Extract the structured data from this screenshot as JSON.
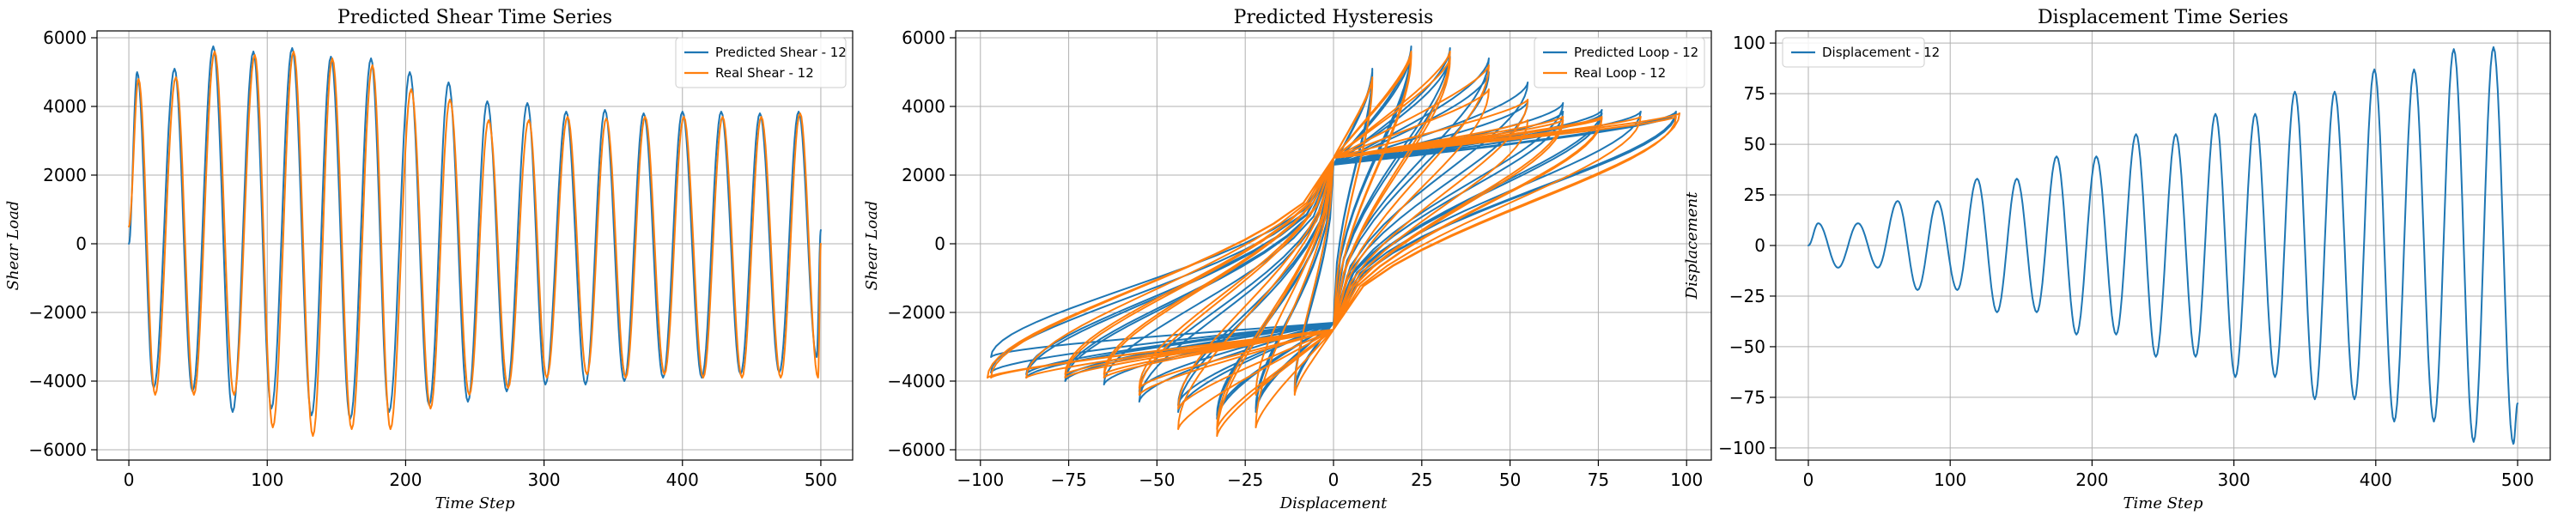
{
  "colors": {
    "blue": "#1f77b4",
    "orange": "#ff7f0e"
  },
  "chart_data": [
    {
      "id": "shear",
      "type": "line",
      "title": "Predicted Shear Time Series",
      "xlabel": "Time Step",
      "ylabel": "Shear Load",
      "xlim": [
        -23,
        523
      ],
      "ylim": [
        -6300,
        6200
      ],
      "xticks": [
        0,
        100,
        200,
        300,
        400,
        500
      ],
      "yticks": [
        -6000,
        -4000,
        -2000,
        0,
        2000,
        4000,
        6000
      ],
      "grid": true,
      "legend_position": "top-right",
      "series": [
        {
          "name": "Predicted Shear - 12",
          "color": "#1f77b4",
          "peaks": [
            {
              "x": 0,
              "y": 0
            },
            {
              "x": 6,
              "y": 5000
            },
            {
              "x": 18,
              "y": -4200
            },
            {
              "x": 33,
              "y": 5100
            },
            {
              "x": 46,
              "y": -4300
            },
            {
              "x": 61,
              "y": 5750
            },
            {
              "x": 75,
              "y": -4900
            },
            {
              "x": 90,
              "y": 5600
            },
            {
              "x": 103,
              "y": -4800
            },
            {
              "x": 118,
              "y": 5700
            },
            {
              "x": 132,
              "y": -5000
            },
            {
              "x": 146,
              "y": 5450
            },
            {
              "x": 160,
              "y": -5100
            },
            {
              "x": 175,
              "y": 5400
            },
            {
              "x": 188,
              "y": -4900
            },
            {
              "x": 203,
              "y": 5000
            },
            {
              "x": 217,
              "y": -4700
            },
            {
              "x": 231,
              "y": 4700
            },
            {
              "x": 245,
              "y": -4600
            },
            {
              "x": 259,
              "y": 4150
            },
            {
              "x": 273,
              "y": -4300
            },
            {
              "x": 288,
              "y": 4100
            },
            {
              "x": 301,
              "y": -4100
            },
            {
              "x": 316,
              "y": 3850
            },
            {
              "x": 330,
              "y": -4100
            },
            {
              "x": 344,
              "y": 3900
            },
            {
              "x": 358,
              "y": -4000
            },
            {
              "x": 372,
              "y": 3800
            },
            {
              "x": 386,
              "y": -3900
            },
            {
              "x": 400,
              "y": 3850
            },
            {
              "x": 414,
              "y": -3900
            },
            {
              "x": 428,
              "y": 3850
            },
            {
              "x": 442,
              "y": -3800
            },
            {
              "x": 456,
              "y": 3800
            },
            {
              "x": 470,
              "y": -3750
            },
            {
              "x": 484,
              "y": 3850
            },
            {
              "x": 497,
              "y": -3300
            },
            {
              "x": 500,
              "y": 400
            }
          ]
        },
        {
          "name": "Real Shear - 12",
          "color": "#ff7f0e",
          "peaks": [
            {
              "x": 0,
              "y": 500
            },
            {
              "x": 7,
              "y": 4800
            },
            {
              "x": 19,
              "y": -4400
            },
            {
              "x": 34,
              "y": 4850
            },
            {
              "x": 47,
              "y": -4400
            },
            {
              "x": 62,
              "y": 5600
            },
            {
              "x": 76,
              "y": -4400
            },
            {
              "x": 91,
              "y": 5500
            },
            {
              "x": 104,
              "y": -5350
            },
            {
              "x": 119,
              "y": 5600
            },
            {
              "x": 133,
              "y": -5600
            },
            {
              "x": 147,
              "y": 5400
            },
            {
              "x": 161,
              "y": -5400
            },
            {
              "x": 176,
              "y": 5200
            },
            {
              "x": 189,
              "y": -5400
            },
            {
              "x": 204,
              "y": 4500
            },
            {
              "x": 218,
              "y": -4800
            },
            {
              "x": 232,
              "y": 4200
            },
            {
              "x": 246,
              "y": -4400
            },
            {
              "x": 260,
              "y": 3600
            },
            {
              "x": 274,
              "y": -4200
            },
            {
              "x": 289,
              "y": 3600
            },
            {
              "x": 302,
              "y": -3900
            },
            {
              "x": 317,
              "y": 3700
            },
            {
              "x": 331,
              "y": -3800
            },
            {
              "x": 345,
              "y": 3650
            },
            {
              "x": 359,
              "y": -3900
            },
            {
              "x": 373,
              "y": 3700
            },
            {
              "x": 387,
              "y": -3800
            },
            {
              "x": 401,
              "y": 3700
            },
            {
              "x": 415,
              "y": -3900
            },
            {
              "x": 429,
              "y": 3700
            },
            {
              "x": 443,
              "y": -3900
            },
            {
              "x": 457,
              "y": 3700
            },
            {
              "x": 471,
              "y": -3900
            },
            {
              "x": 485,
              "y": 3800
            },
            {
              "x": 498,
              "y": -3900
            },
            {
              "x": 500,
              "y": 0
            }
          ]
        }
      ]
    },
    {
      "id": "hysteresis",
      "type": "line",
      "title": "Predicted Hysteresis",
      "xlabel": "Displacement",
      "ylabel": "Shear Load",
      "xlim": [
        -107,
        107
      ],
      "ylim": [
        -6300,
        6200
      ],
      "xticks": [
        -100,
        -75,
        -50,
        -25,
        0,
        25,
        50,
        75,
        100
      ],
      "yticks": [
        -6000,
        -4000,
        -2000,
        0,
        2000,
        4000,
        6000
      ],
      "grid": true,
      "legend_position": "top-right",
      "series": [
        {
          "name": "Predicted Loop - 12",
          "color": "#1f77b4",
          "amplitudes": [
            11,
            11,
            22,
            22,
            33,
            33,
            44,
            44,
            55,
            55,
            65,
            65,
            76,
            76,
            87,
            87,
            97,
            97
          ],
          "peak_pos": [
            5000,
            5100,
            5750,
            5600,
            5700,
            5450,
            5400,
            5000,
            4700,
            4150,
            4100,
            3850,
            3900,
            3800,
            3850,
            3850,
            3800,
            3850
          ],
          "peak_neg": [
            -4200,
            -4300,
            -4900,
            -4800,
            -5000,
            -5100,
            -4900,
            -4700,
            -4600,
            -4300,
            -4100,
            -4100,
            -4000,
            -3900,
            -3900,
            -3800,
            -3750,
            -3300
          ],
          "intercept": 2300
        },
        {
          "name": "Real Loop - 12",
          "color": "#ff7f0e",
          "amplitudes": [
            11,
            11,
            22,
            22,
            33,
            33,
            44,
            44,
            55,
            55,
            65,
            65,
            76,
            76,
            87,
            87,
            97,
            98
          ],
          "peak_pos": [
            4800,
            4850,
            5600,
            5500,
            5600,
            5400,
            5200,
            4500,
            4200,
            3600,
            3600,
            3700,
            3650,
            3700,
            3700,
            3700,
            3700,
            3800
          ],
          "peak_neg": [
            -4400,
            -4400,
            -4400,
            -5350,
            -5600,
            -5400,
            -5400,
            -4800,
            -4400,
            -4200,
            -3900,
            -3800,
            -3900,
            -3800,
            -3900,
            -3900,
            -3900,
            -3900
          ],
          "intercept": 2500
        }
      ]
    },
    {
      "id": "displacement",
      "type": "line",
      "title": "Displacement Time Series",
      "xlabel": "Time Step",
      "ylabel": "Displacement",
      "xlim": [
        -23,
        523
      ],
      "ylim": [
        -106,
        106
      ],
      "xticks": [
        0,
        100,
        200,
        300,
        400,
        500
      ],
      "yticks": [
        -100,
        -75,
        -50,
        -25,
        0,
        25,
        50,
        75,
        100
      ],
      "grid": true,
      "legend_position": "top-left",
      "series": [
        {
          "name": "Displacement - 12",
          "color": "#1f77b4",
          "peaks": [
            {
              "x": 0,
              "y": 0
            },
            {
              "x": 7,
              "y": 11
            },
            {
              "x": 21,
              "y": -11
            },
            {
              "x": 35,
              "y": 11
            },
            {
              "x": 49,
              "y": -11
            },
            {
              "x": 63,
              "y": 22
            },
            {
              "x": 77,
              "y": -22
            },
            {
              "x": 91,
              "y": 22
            },
            {
              "x": 105,
              "y": -22
            },
            {
              "x": 119,
              "y": 33
            },
            {
              "x": 133,
              "y": -33
            },
            {
              "x": 147,
              "y": 33
            },
            {
              "x": 161,
              "y": -33
            },
            {
              "x": 175,
              "y": 44
            },
            {
              "x": 189,
              "y": -44
            },
            {
              "x": 203,
              "y": 44
            },
            {
              "x": 217,
              "y": -44
            },
            {
              "x": 231,
              "y": 55
            },
            {
              "x": 245,
              "y": -55
            },
            {
              "x": 259,
              "y": 55
            },
            {
              "x": 273,
              "y": -55
            },
            {
              "x": 287,
              "y": 65
            },
            {
              "x": 301,
              "y": -65
            },
            {
              "x": 315,
              "y": 65
            },
            {
              "x": 329,
              "y": -65
            },
            {
              "x": 343,
              "y": 76
            },
            {
              "x": 357,
              "y": -76
            },
            {
              "x": 371,
              "y": 76
            },
            {
              "x": 385,
              "y": -76
            },
            {
              "x": 399,
              "y": 87
            },
            {
              "x": 413,
              "y": -87
            },
            {
              "x": 427,
              "y": 87
            },
            {
              "x": 441,
              "y": -87
            },
            {
              "x": 455,
              "y": 97
            },
            {
              "x": 469,
              "y": -97
            },
            {
              "x": 483,
              "y": 98
            },
            {
              "x": 497,
              "y": -98
            },
            {
              "x": 500,
              "y": -78
            }
          ]
        }
      ]
    }
  ]
}
